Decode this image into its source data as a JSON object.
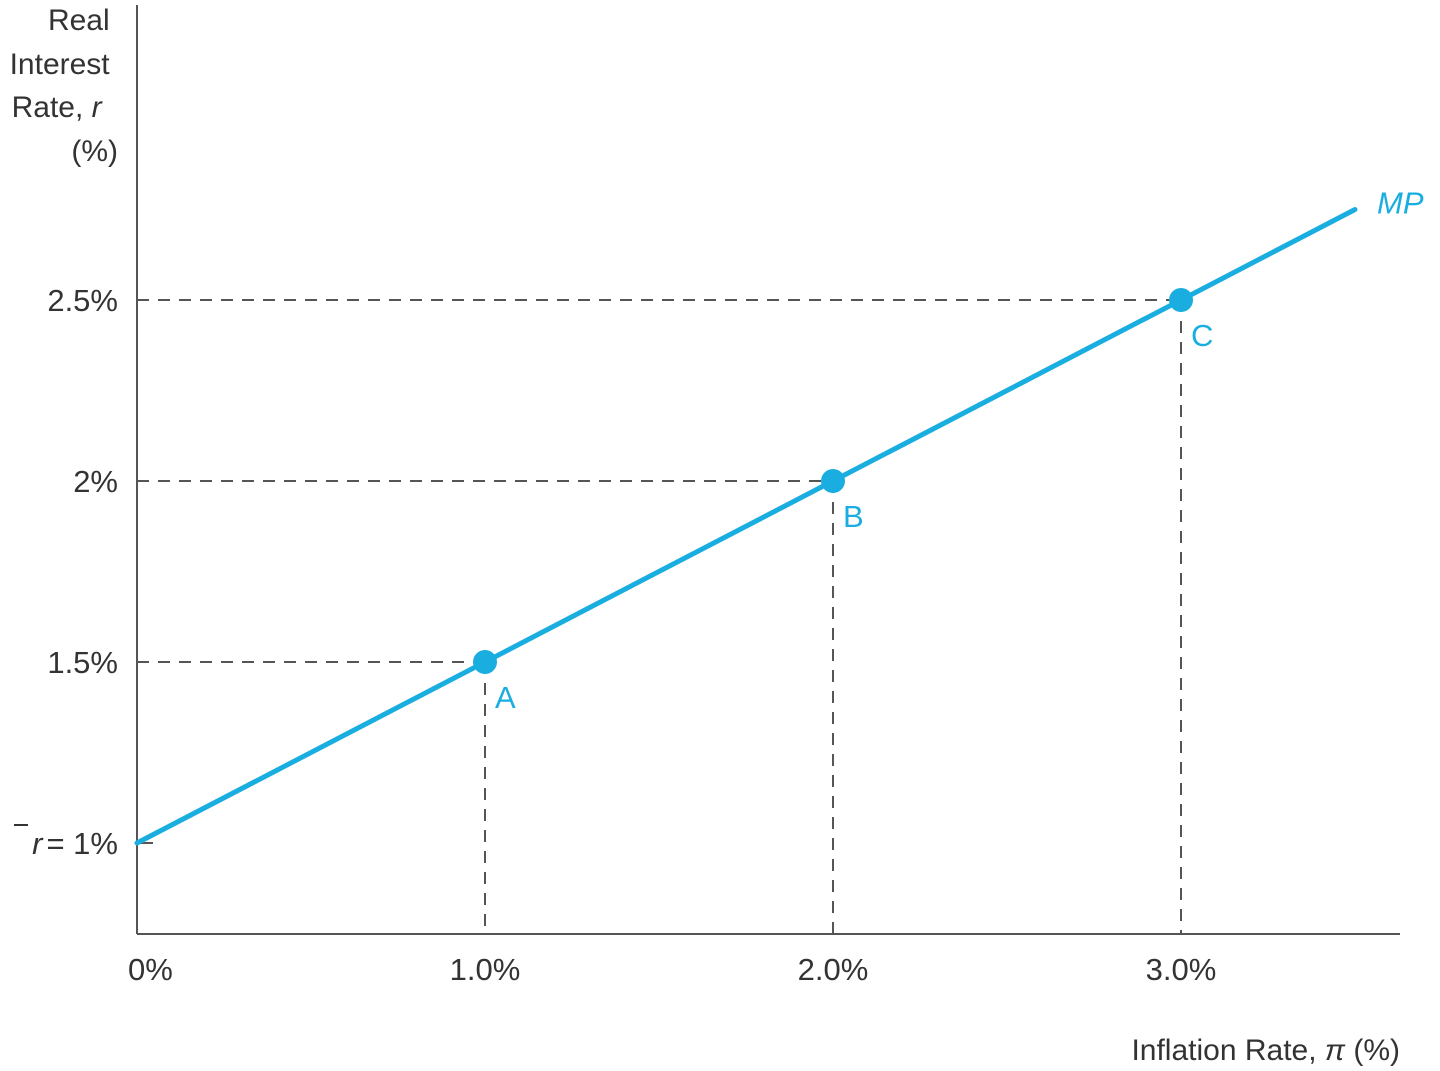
{
  "chart_data": {
    "type": "line",
    "xlabel": "Inflation Rate, π (%)",
    "xlabel_parts": {
      "text": "Inflation Rate, ",
      "symbol": "π",
      "unit": " (%)"
    },
    "ylabel_lines": [
      "Real",
      "Interest",
      "Rate, r",
      "(%)"
    ],
    "ylabel_parts": {
      "line1": "Real",
      "line2": "Interest",
      "line3_text": "Rate, ",
      "line3_symbol": "r",
      "line4": "(%)"
    },
    "xlim": [
      0,
      3.64
    ],
    "ylim": [
      0.75,
      3.33
    ],
    "x_ticks": [
      {
        "value": 0,
        "label": "0%"
      },
      {
        "value": 1,
        "label": "1.0%"
      },
      {
        "value": 2,
        "label": "2.0%"
      },
      {
        "value": 3,
        "label": "3.0%"
      }
    ],
    "y_ticks": [
      {
        "value": 1,
        "label": "r̅ = 1%",
        "prefix": "r",
        "suffix": "= 1%"
      },
      {
        "value": 1.5,
        "label": "1.5%"
      },
      {
        "value": 2,
        "label": "2%"
      },
      {
        "value": 2.5,
        "label": "2.5%"
      }
    ],
    "series": [
      {
        "name": "MP",
        "color": "#1aaee0",
        "x": [
          0,
          3.5
        ],
        "y": [
          1,
          2.75
        ]
      }
    ],
    "points": [
      {
        "label": "A",
        "x": 1,
        "y": 1.5
      },
      {
        "label": "B",
        "x": 2,
        "y": 2
      },
      {
        "label": "C",
        "x": 3,
        "y": 2.5
      }
    ],
    "grid": false
  }
}
